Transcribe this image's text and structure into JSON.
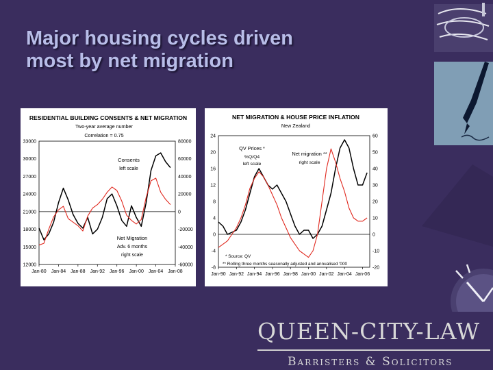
{
  "slide": {
    "title_line1": "Major housing cycles driven",
    "title_line2": "most by net migration",
    "background": "#3a2d5e",
    "title_color": "#b8bde8"
  },
  "brand": {
    "name": "QUEEN-CITY-LAW",
    "subtitle": "Barristers & Solicitors"
  },
  "decoration": {
    "icons": [
      "notebook-icon",
      "fountain-pen-icon",
      "glass-building-icon",
      "clock-icon"
    ]
  },
  "chart_data": [
    {
      "type": "line",
      "title": "RESIDENTIAL BUILDING CONSENTS & NET MIGRATION",
      "subtitle": "Two-year average number",
      "annotation": "Correlation = 0.75",
      "x_ticks": [
        "Jan-80",
        "Jan-84",
        "Jan-88",
        "Jan-92",
        "Jan-96",
        "Jan-00",
        "Jan-04",
        "Jan-08"
      ],
      "x_range": [
        1980,
        2008
      ],
      "left_axis": {
        "ticks": [
          12000,
          15000,
          18000,
          21000,
          24000,
          27000,
          30000,
          33000
        ],
        "ylim": [
          12000,
          33000
        ]
      },
      "right_axis": {
        "ticks": [
          -60000,
          -40000,
          -20000,
          0,
          20000,
          40000,
          60000,
          80000
        ],
        "ylim": [
          -60000,
          80000
        ]
      },
      "series": [
        {
          "name": "Consents",
          "label": "Consents",
          "sublabel": "left scale",
          "axis": "left",
          "color": "#000000",
          "points": [
            [
              1980,
              18200
            ],
            [
              1981,
              16200
            ],
            [
              1982,
              17200
            ],
            [
              1983,
              19200
            ],
            [
              1984,
              22500
            ],
            [
              1985,
              25000
            ],
            [
              1986,
              23000
            ],
            [
              1987,
              20500
            ],
            [
              1988,
              19000
            ],
            [
              1989,
              18200
            ],
            [
              1990,
              20000
            ],
            [
              1991,
              17200
            ],
            [
              1992,
              18000
            ],
            [
              1993,
              20000
            ],
            [
              1994,
              23200
            ],
            [
              1995,
              24000
            ],
            [
              1996,
              22000
            ],
            [
              1997,
              19500
            ],
            [
              1998,
              18500
            ],
            [
              1999,
              22000
            ],
            [
              2000,
              20000
            ],
            [
              2001,
              18500
            ],
            [
              2002,
              22500
            ],
            [
              2003,
              28000
            ],
            [
              2004,
              30500
            ],
            [
              2005,
              31000
            ],
            [
              2006,
              29500
            ],
            [
              2007,
              28500
            ]
          ]
        },
        {
          "name": "Net Migration",
          "label": "Net Migration",
          "sublabel": "Adv. 6 months",
          "sublabel2": "right scale",
          "axis": "right",
          "color": "#e0281e",
          "points": [
            [
              1980,
              -38000
            ],
            [
              1981,
              -36000
            ],
            [
              1982,
              -20000
            ],
            [
              1983,
              -6000
            ],
            [
              1984,
              2000
            ],
            [
              1985,
              6000
            ],
            [
              1986,
              -8000
            ],
            [
              1987,
              -12000
            ],
            [
              1988,
              -16000
            ],
            [
              1989,
              -22000
            ],
            [
              1990,
              -5000
            ],
            [
              1991,
              4000
            ],
            [
              1992,
              8000
            ],
            [
              1993,
              14000
            ],
            [
              1994,
              22000
            ],
            [
              1995,
              28000
            ],
            [
              1996,
              24000
            ],
            [
              1997,
              12000
            ],
            [
              1998,
              -4000
            ],
            [
              1999,
              -10000
            ],
            [
              2000,
              -14000
            ],
            [
              2001,
              -9000
            ],
            [
              2002,
              16000
            ],
            [
              2003,
              35000
            ],
            [
              2004,
              38000
            ],
            [
              2005,
              22000
            ],
            [
              2006,
              14000
            ],
            [
              2007,
              8000
            ]
          ]
        }
      ]
    },
    {
      "type": "line",
      "title": "NET MIGRATION & HOUSE PRICE INFLATION",
      "subtitle": "New Zealand",
      "x_ticks": [
        "Jan-90",
        "Jan-92",
        "Jan-94",
        "Jan-96",
        "Jan-98",
        "Jan-00",
        "Jan-02",
        "Jan-04",
        "Jan-06"
      ],
      "x_range": [
        1990,
        2006.8
      ],
      "left_axis": {
        "ticks": [
          -8,
          -4,
          0,
          4,
          8,
          12,
          16,
          20,
          24
        ],
        "ylim": [
          -8,
          24
        ]
      },
      "right_axis": {
        "ticks": [
          -20,
          -10,
          0,
          10,
          20,
          30,
          40,
          50,
          60
        ],
        "ylim": [
          -20,
          60
        ]
      },
      "footnotes": [
        "* Source: QV",
        "** Rolling three months seasonally adjusted and annualised '000"
      ],
      "series": [
        {
          "name": "QV Prices *",
          "label": "QV Prices *",
          "sublabel": "%Q/Q4",
          "sublabel2": "left scale",
          "axis": "left",
          "color": "#000000",
          "points": [
            [
              1990,
              3
            ],
            [
              1990.5,
              2
            ],
            [
              1991,
              0
            ],
            [
              1991.5,
              0.5
            ],
            [
              1992,
              1
            ],
            [
              1992.5,
              3
            ],
            [
              1993,
              6
            ],
            [
              1993.5,
              10
            ],
            [
              1994,
              14
            ],
            [
              1994.5,
              16
            ],
            [
              1995,
              14
            ],
            [
              1995.5,
              12
            ],
            [
              1996,
              11
            ],
            [
              1996.5,
              12
            ],
            [
              1997,
              10
            ],
            [
              1997.5,
              8
            ],
            [
              1998,
              5
            ],
            [
              1998.5,
              2
            ],
            [
              1999,
              0
            ],
            [
              1999.5,
              1
            ],
            [
              2000,
              1
            ],
            [
              2000.5,
              -1
            ],
            [
              2001,
              0
            ],
            [
              2001.5,
              2
            ],
            [
              2002,
              6
            ],
            [
              2002.5,
              10
            ],
            [
              2003,
              16
            ],
            [
              2003.5,
              21
            ],
            [
              2004,
              23
            ],
            [
              2004.5,
              21
            ],
            [
              2005,
              16
            ],
            [
              2005.5,
              12
            ],
            [
              2006,
              12
            ],
            [
              2006.5,
              15
            ]
          ]
        },
        {
          "name": "Net migration **",
          "label": "Net migration **",
          "sublabel": "right scale",
          "axis": "right",
          "color": "#e0281e",
          "points": [
            [
              1990,
              -8
            ],
            [
              1990.5,
              -6
            ],
            [
              1991,
              -4
            ],
            [
              1991.5,
              0
            ],
            [
              1992,
              4
            ],
            [
              1992.5,
              10
            ],
            [
              1993,
              18
            ],
            [
              1993.5,
              28
            ],
            [
              1994,
              34
            ],
            [
              1994.5,
              38
            ],
            [
              1995,
              35
            ],
            [
              1995.5,
              30
            ],
            [
              1996,
              24
            ],
            [
              1996.5,
              18
            ],
            [
              1997,
              10
            ],
            [
              1997.5,
              4
            ],
            [
              1998,
              -2
            ],
            [
              1998.5,
              -6
            ],
            [
              1999,
              -10
            ],
            [
              1999.5,
              -12
            ],
            [
              2000,
              -14
            ],
            [
              2000.5,
              -10
            ],
            [
              2001,
              0
            ],
            [
              2001.5,
              20
            ],
            [
              2002,
              40
            ],
            [
              2002.5,
              52
            ],
            [
              2003,
              44
            ],
            [
              2003.5,
              34
            ],
            [
              2004,
              26
            ],
            [
              2004.5,
              16
            ],
            [
              2005,
              10
            ],
            [
              2005.5,
              8
            ],
            [
              2006,
              8
            ],
            [
              2006.5,
              10
            ]
          ]
        }
      ]
    }
  ]
}
